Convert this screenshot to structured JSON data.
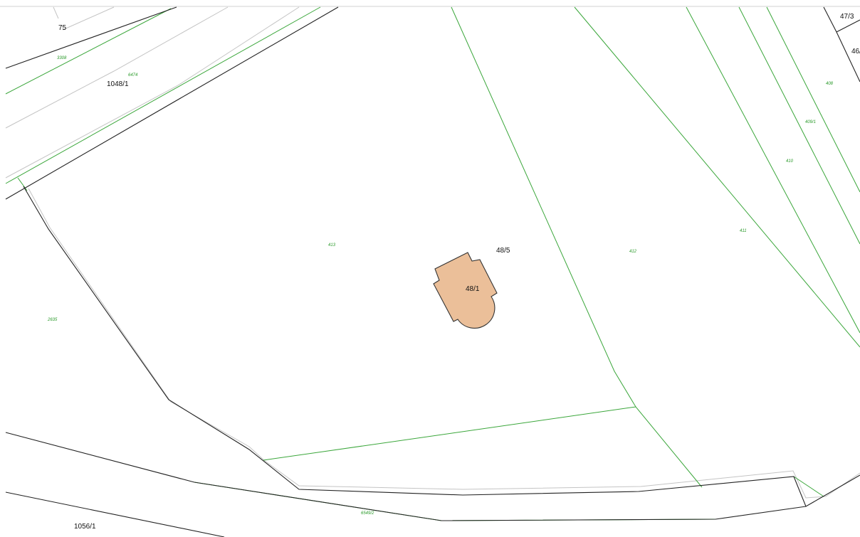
{
  "map": {
    "colors": {
      "background": "#ffffff",
      "boundary_black": "#222222",
      "boundary_grey": "#c4c4c4",
      "boundary_green": "#3aa63a",
      "building_fill": "#ebbf99",
      "building_stroke": "#333333",
      "label_black": "#111111",
      "label_green": "#2a9a2a"
    },
    "parcel_labels": {
      "p75": "75",
      "p47_3": "47/3",
      "p46": "46/",
      "p1048_1": "1048/1",
      "p48_5": "48/5",
      "p48_1": "48/1",
      "p1056_1": "1056/1"
    },
    "plot_labels": {
      "l3308": "3308",
      "l6474": "6474",
      "l413": "413",
      "l412": "412",
      "l411": "411",
      "l410": "410",
      "l409_1": "409/1",
      "l408": "408",
      "l2635": "2635",
      "l6549_2": "6549/2"
    },
    "building": {
      "name": "building-48-1",
      "label_key": "p48_1"
    }
  }
}
